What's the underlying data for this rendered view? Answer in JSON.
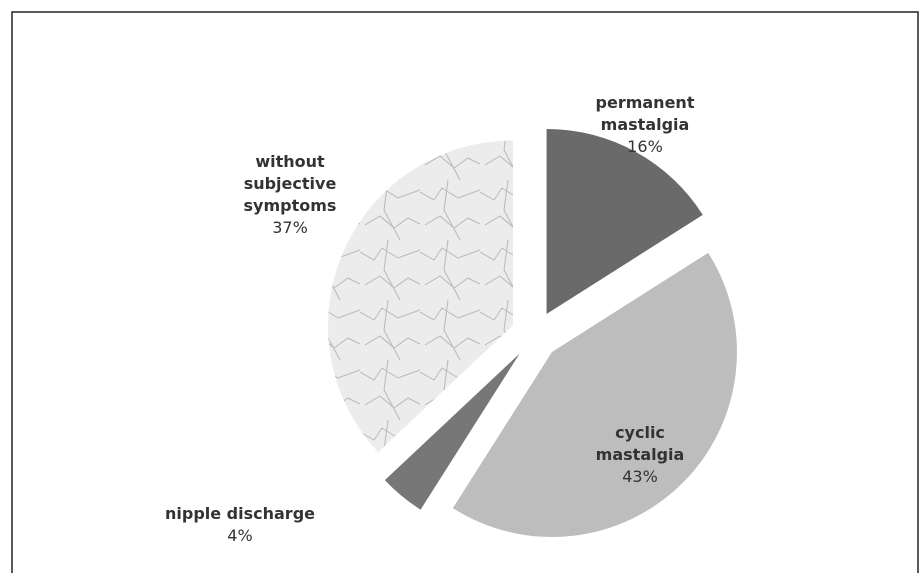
{
  "chart_data": {
    "type": "pie",
    "categories": [
      "permanent mastalgia",
      "cyclic mastalgia",
      "nipple discharge",
      "without subjective symptoms"
    ],
    "values": [
      16,
      43,
      4,
      37
    ],
    "value_labels": [
      "16%",
      "43%",
      "4%",
      "37%"
    ],
    "colors": [
      "#6a6a6a",
      "#bdbdbd",
      "#777777",
      "#e9e9e9"
    ]
  }
}
